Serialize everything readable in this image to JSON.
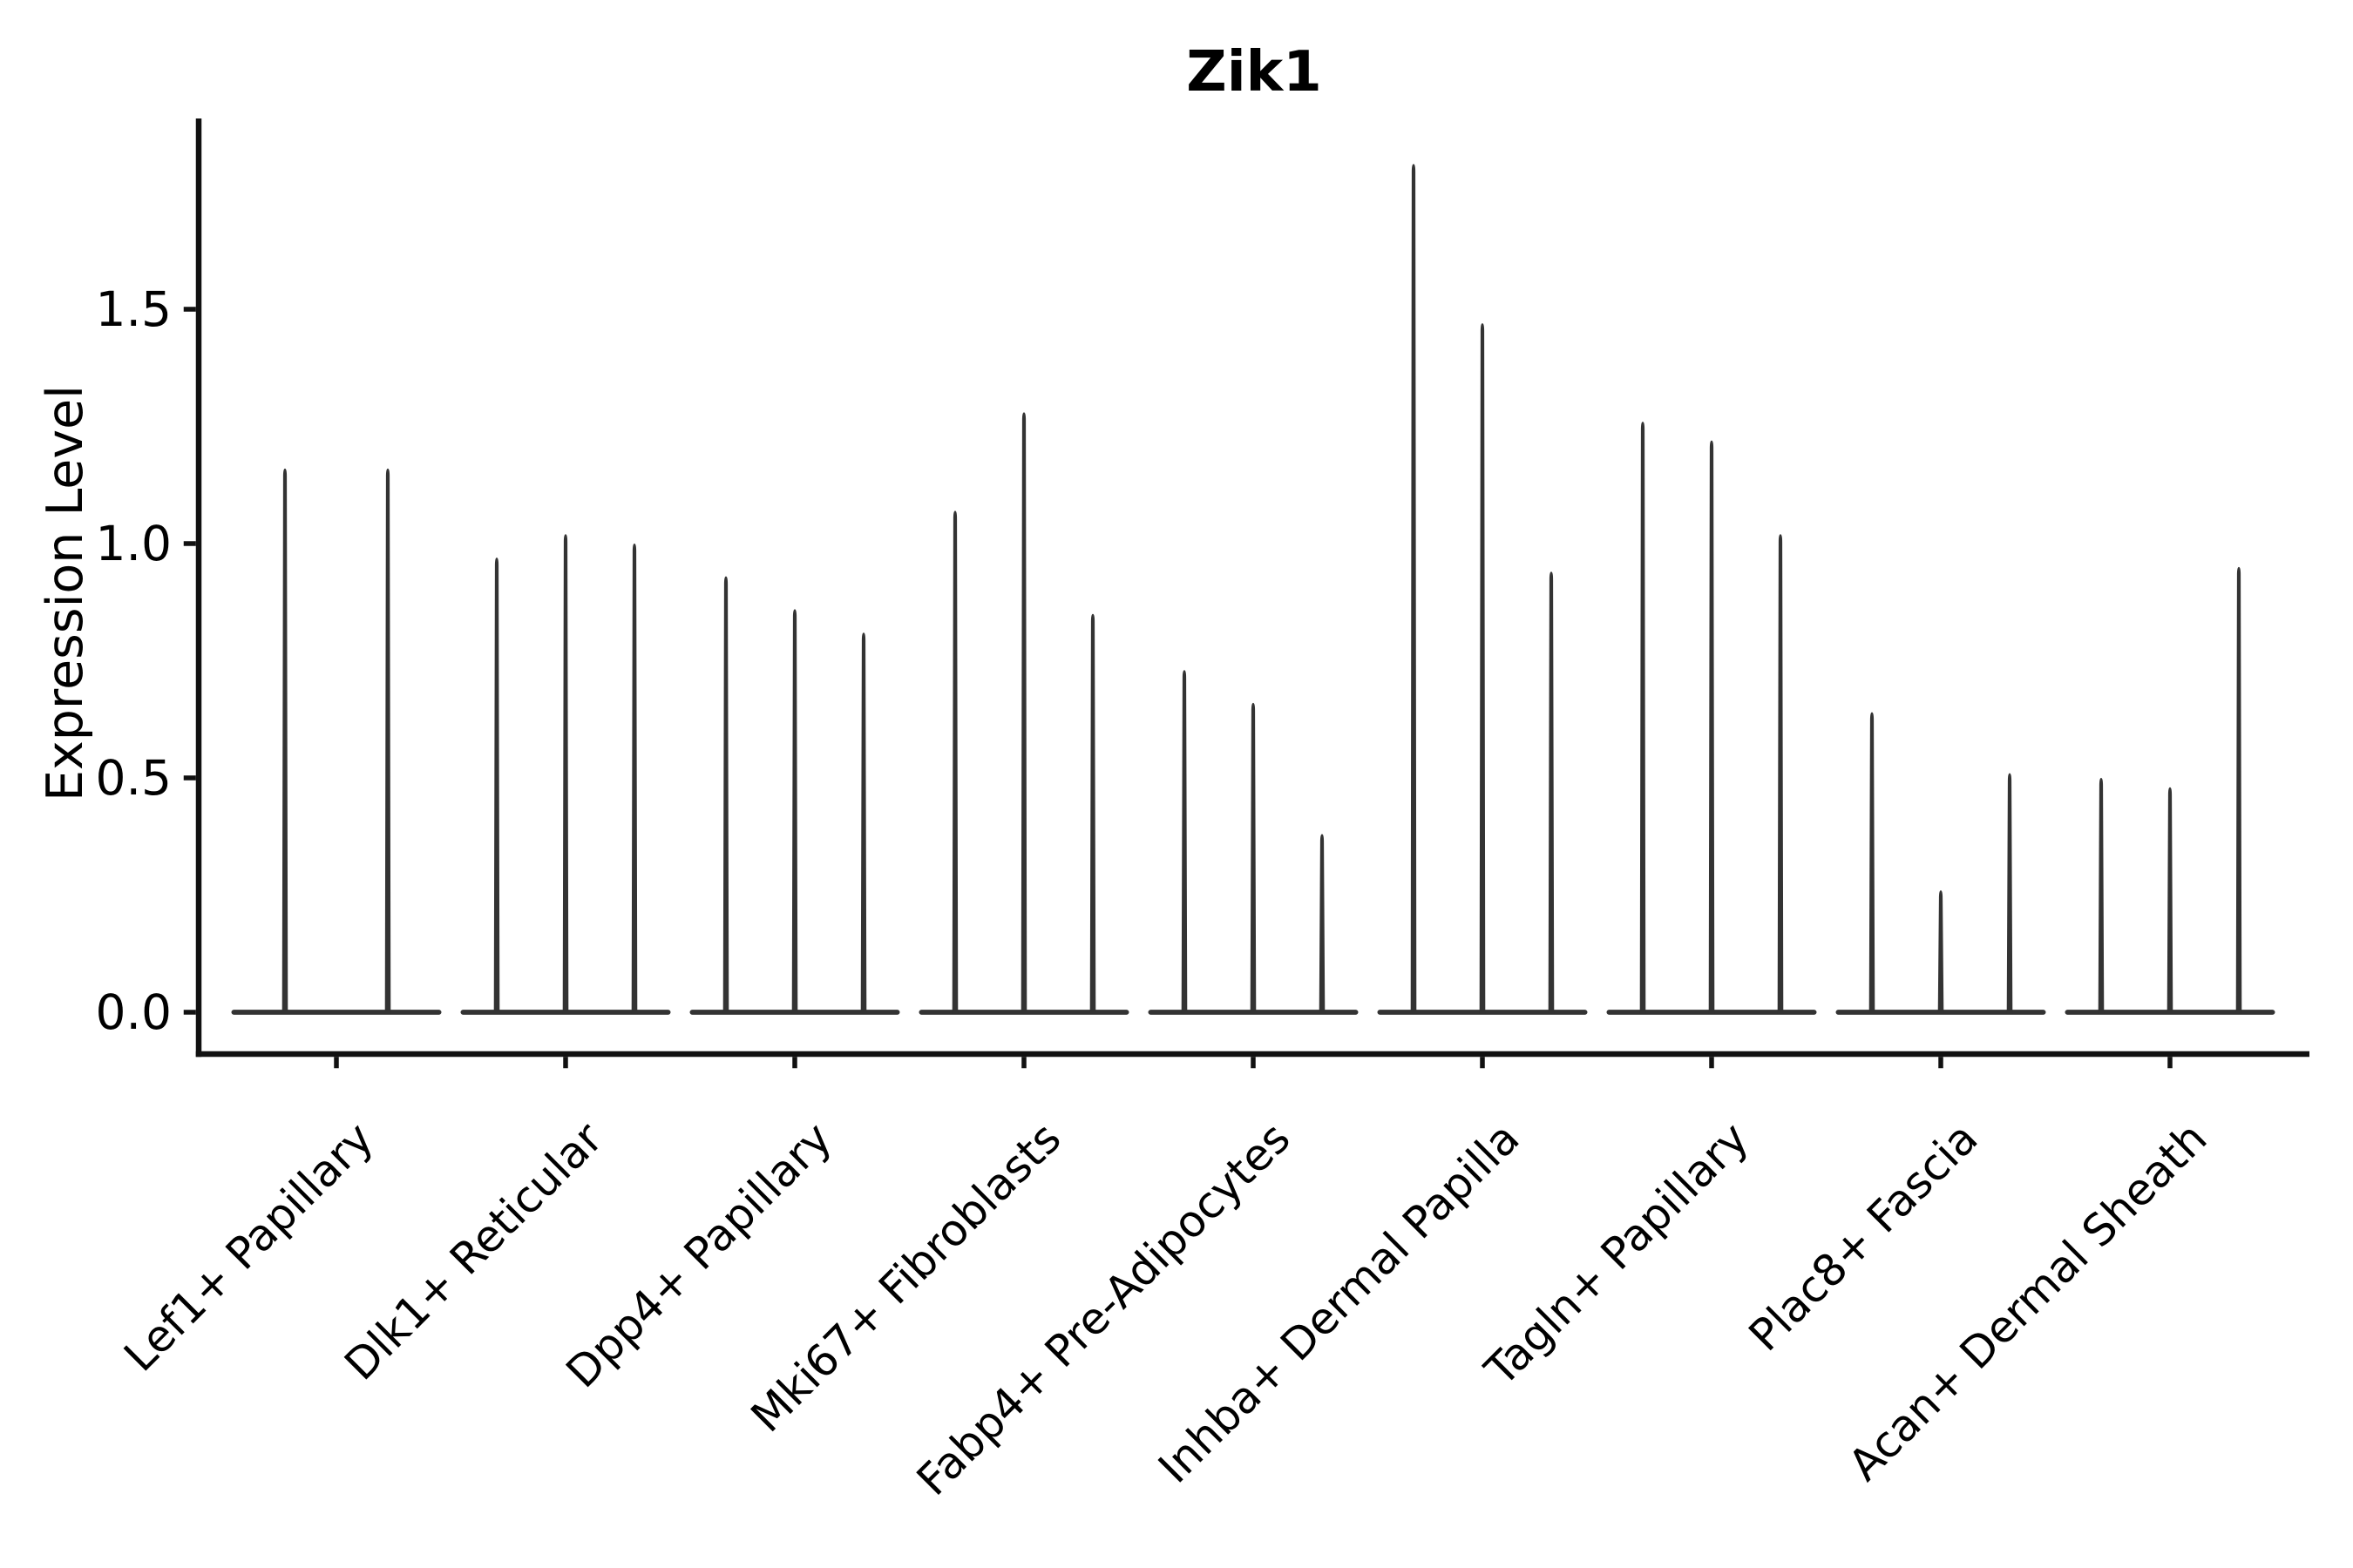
{
  "chart_data": {
    "type": "violin",
    "title": "Zik1",
    "xlabel": "",
    "ylabel": "Expression Level",
    "ylim": [
      -0.09,
      1.9
    ],
    "yticks": [
      0.0,
      0.5,
      1.0,
      1.5
    ],
    "ytick_labels": [
      "0.0",
      "0.5",
      "1.0",
      "1.5"
    ],
    "grid": false,
    "legend": "none",
    "violin_color": "#333333",
    "axis_color": "#111111",
    "categories": [
      "Lef1+ Papillary",
      "Dlk1+ Reticular",
      "Dpp4+ Papillary",
      "Mki67+ Fibroblasts",
      "Fabp4+ Pre-Adipocytes",
      "Inhba+ Dermal Papilla",
      "Tagln+ Papillary",
      "Plac8+ Fascia",
      "Acan+ Dermal Sheath"
    ],
    "groups": [
      {
        "label": "Lef1+ Papillary",
        "violin_max_values": [
          1.16,
          1.16
        ]
      },
      {
        "label": "Dlk1+ Reticular",
        "violin_max_values": [
          0.97,
          1.02,
          1.0
        ]
      },
      {
        "label": "Dpp4+ Papillary",
        "violin_max_values": [
          0.93,
          0.86,
          0.81
        ]
      },
      {
        "label": "Mki67+ Fibroblasts",
        "violin_max_values": [
          1.07,
          1.28,
          0.85
        ]
      },
      {
        "label": "Fabp4+ Pre-Adipocytes",
        "violin_max_values": [
          0.73,
          0.66,
          0.38
        ]
      },
      {
        "label": "Inhba+ Dermal Papilla",
        "violin_max_values": [
          1.81,
          1.47,
          0.94
        ]
      },
      {
        "label": "Tagln+ Papillary",
        "violin_max_values": [
          1.26,
          1.22,
          1.02
        ]
      },
      {
        "label": "Plac8+ Fascia",
        "violin_max_values": [
          0.64,
          0.26,
          0.51
        ]
      },
      {
        "label": "Acan+ Dermal Sheath",
        "violin_max_values": [
          0.5,
          0.48,
          0.95
        ]
      }
    ]
  }
}
